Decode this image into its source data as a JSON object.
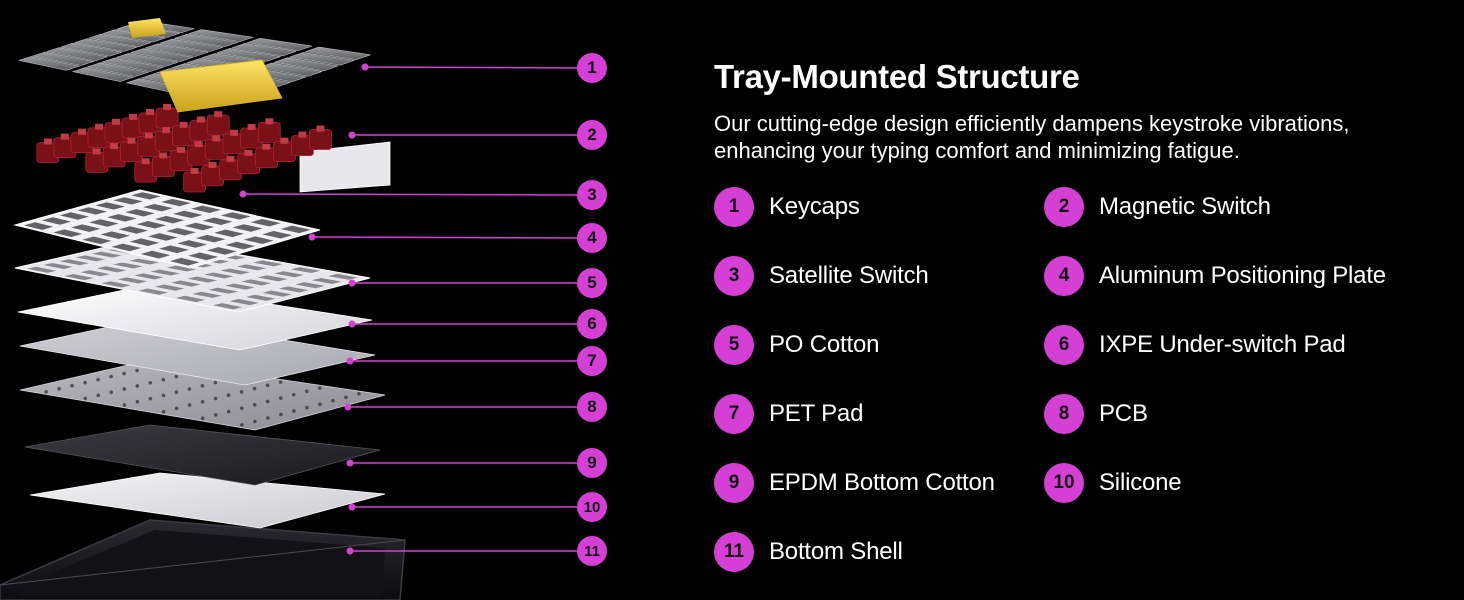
{
  "colors": {
    "accent": "#d63fd6",
    "background": "#000000",
    "text": "#ffffff",
    "keycap_yellow": "#f2d233",
    "switch_red": "#7a1018"
  },
  "heading": {
    "title": "Tray-Mounted Structure",
    "subtitle": "Our cutting-edge design efficiently dampens keystroke vibrations, enhancing your typing comfort and minimizing fatigue."
  },
  "components": [
    {
      "number": "1",
      "label": "Keycaps"
    },
    {
      "number": "2",
      "label": "Magnetic Switch"
    },
    {
      "number": "3",
      "label": "Satellite Switch"
    },
    {
      "number": "4",
      "label": "Aluminum Positioning Plate"
    },
    {
      "number": "5",
      "label": "PO Cotton"
    },
    {
      "number": "6",
      "label": "IXPE Under-switch Pad"
    },
    {
      "number": "7",
      "label": "PET Pad"
    },
    {
      "number": "8",
      "label": "PCB"
    },
    {
      "number": "9",
      "label": "EPDM Bottom Cotton"
    },
    {
      "number": "10",
      "label": "Silicone"
    },
    {
      "number": "11",
      "label": "Bottom Shell"
    }
  ]
}
